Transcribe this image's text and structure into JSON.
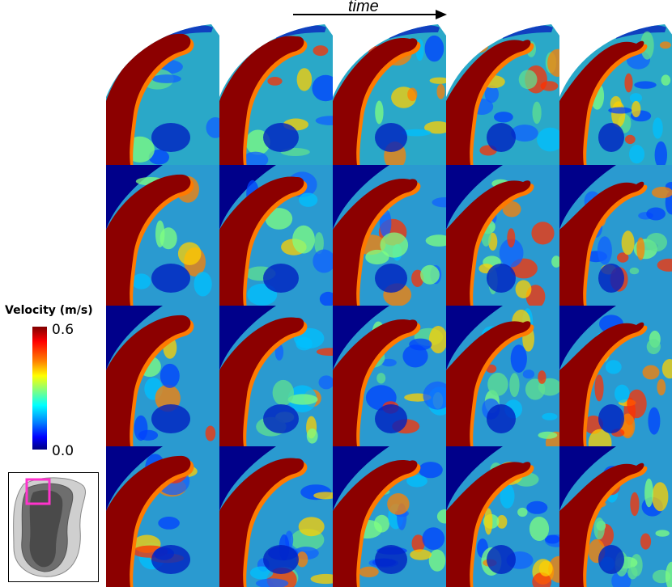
{
  "header": {
    "time_label": "time"
  },
  "legend": {
    "title": "Velocity (m/s)",
    "max_label": "0.6",
    "min_label": "0.0"
  },
  "colors": {
    "colormap": [
      "#000080",
      "#0000ff",
      "#0080ff",
      "#00ffff",
      "#80ff80",
      "#ffff00",
      "#ff8000",
      "#ff0000",
      "#800000"
    ],
    "inset_highlight": "#ff33cc"
  },
  "panels": {
    "rows": 4,
    "columns": 5
  }
}
